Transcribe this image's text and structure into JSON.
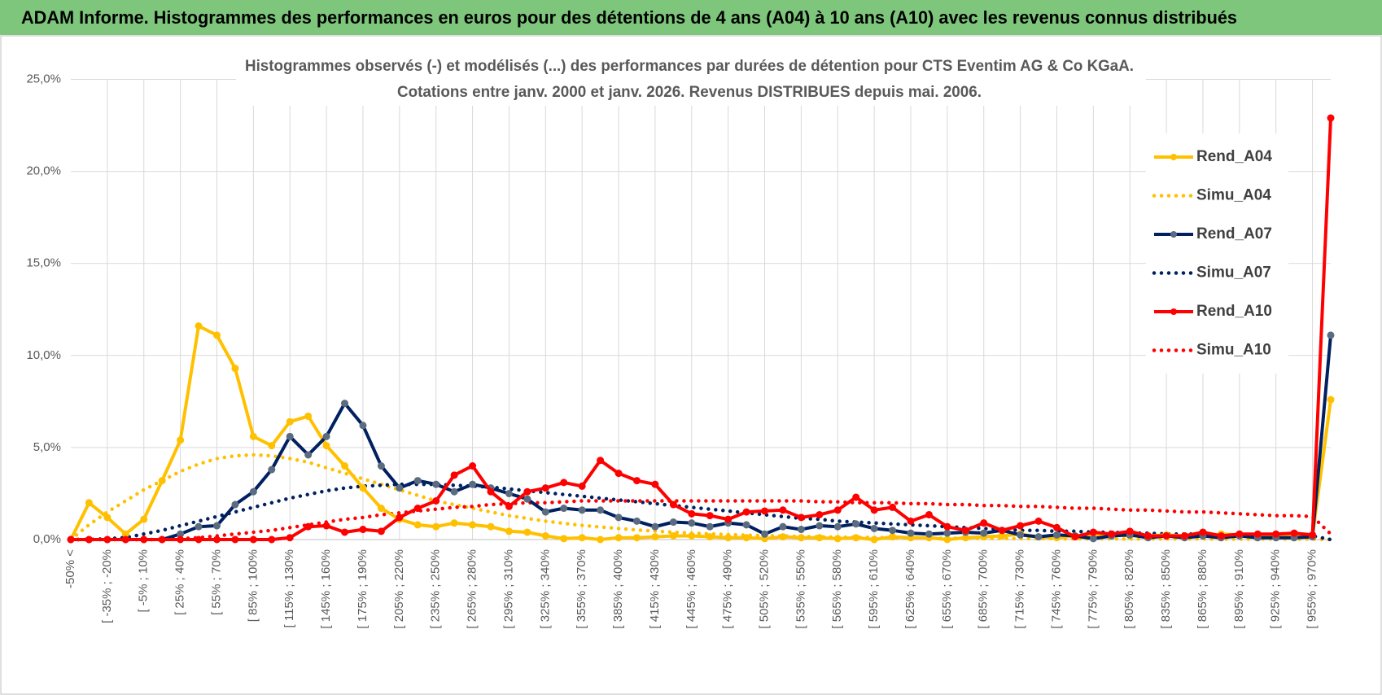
{
  "header": {
    "title": "ADAM Informe. Histogrammes des performances en euros pour des détentions de 4 ans (A04) à 10 ans (A10) avec les revenus connus distribués"
  },
  "chart_data": {
    "type": "line",
    "title": "Histogrammes observés (-) et modélisés (...) des performances par durées de détention pour CTS Eventim AG & Co KGaA.",
    "subtitle": "Cotations entre janv. 2000 et janv. 2026. Revenus DISTRIBUES depuis mai. 2006.",
    "categories": [
      "-50% <",
      null,
      "[ -35% ; -20%",
      null,
      "[ -5% ; 10%",
      null,
      "[ 25% ; 40%",
      null,
      "[ 55% ; 70%",
      null,
      "[ 85% ; 100%",
      null,
      "[ 115% ; 130%",
      null,
      "[ 145% ; 160%",
      null,
      "[ 175% ; 190%",
      null,
      "[ 205% ; 220%",
      null,
      "[ 235% ; 250%",
      null,
      "[ 265% ; 280%",
      null,
      "[ 295% ; 310%",
      null,
      "[ 325% ; 340%",
      null,
      "[ 355% ; 370%",
      null,
      "[ 385% ; 400%",
      null,
      "[ 415% ; 430%",
      null,
      "[ 445% ; 460%",
      null,
      "[ 475% ; 490%",
      null,
      "[ 505% ; 520%",
      null,
      "[ 535% ; 550%",
      null,
      "[ 565% ; 580%",
      null,
      "[ 595% ; 610%",
      null,
      "[ 625% ; 640%",
      null,
      "[ 655% ; 670%",
      null,
      "[ 685% ; 700%",
      null,
      "[ 715% ; 730%",
      null,
      "[ 745% ; 760%",
      null,
      "[ 775% ; 790%",
      null,
      "[ 805% ; 820%",
      null,
      "[ 835% ; 850%",
      null,
      "[ 865% ; 880%",
      null,
      "[ 895% ; 910%",
      null,
      "[ 925% ; 940%",
      null,
      "[ 955% ; 970%",
      null
    ],
    "series": [
      {
        "name": "Rend_A04",
        "color": "#ffc000",
        "style": "solid",
        "markers": true,
        "marker_color": "#ffc000",
        "values": [
          0,
          2.0,
          1.2,
          0.3,
          1.1,
          3.2,
          5.4,
          11.6,
          11.1,
          9.3,
          5.6,
          5.1,
          6.4,
          6.7,
          5.1,
          4.0,
          2.8,
          1.7,
          1.1,
          0.8,
          0.7,
          0.9,
          0.8,
          0.7,
          0.45,
          0.4,
          0.2,
          0.05,
          0.1,
          0.0,
          0.1,
          0.1,
          0.15,
          0.2,
          0.2,
          0.15,
          0.1,
          0.1,
          0.05,
          0.15,
          0.1,
          0.1,
          0.05,
          0.1,
          0.0,
          0.15,
          0.1,
          0.1,
          0.0,
          0.1,
          0.15,
          0.2,
          0.3,
          0.15,
          0.1,
          0.2,
          0.25,
          0.3,
          0.2,
          0.2,
          0.25,
          0.2,
          0.2,
          0.3,
          0.25,
          0.2,
          0.25,
          0.2,
          0.2,
          7.6
        ]
      },
      {
        "name": "Simu_A04",
        "color": "#ffc000",
        "style": "dotted",
        "markers": false,
        "values": [
          0,
          0.8,
          1.5,
          2.1,
          2.7,
          3.2,
          3.7,
          4.1,
          4.4,
          4.55,
          4.6,
          4.55,
          4.4,
          4.2,
          3.9,
          3.6,
          3.3,
          3.0,
          2.7,
          2.4,
          2.1,
          1.9,
          1.7,
          1.5,
          1.3,
          1.15,
          1.0,
          0.88,
          0.77,
          0.68,
          0.6,
          0.52,
          0.46,
          0.4,
          0.35,
          0.31,
          0.27,
          0.24,
          0.21,
          0.19,
          0.17,
          0.15,
          0.13,
          0.12,
          0.11,
          0.1,
          0.09,
          0.08,
          0.07,
          0.07,
          0.06,
          0.06,
          0.05,
          0.05,
          0.05,
          0.04,
          0.04,
          0.04,
          0.03,
          0.03,
          0.03,
          0.03,
          0.03,
          0.02,
          0.02,
          0.02,
          0.02,
          0.02,
          0.02,
          0
        ]
      },
      {
        "name": "Rend_A07",
        "color": "#002060",
        "style": "solid",
        "markers": true,
        "marker_color": "#5b6b80",
        "values": [
          0,
          0,
          0,
          0,
          0,
          0,
          0.3,
          0.7,
          0.75,
          1.9,
          2.6,
          3.8,
          5.6,
          4.6,
          5.6,
          7.4,
          6.2,
          4.0,
          2.8,
          3.2,
          3.0,
          2.6,
          3.0,
          2.8,
          2.5,
          2.2,
          1.5,
          1.7,
          1.6,
          1.6,
          1.2,
          1.0,
          0.7,
          0.95,
          0.9,
          0.7,
          0.9,
          0.8,
          0.3,
          0.7,
          0.55,
          0.75,
          0.7,
          0.85,
          0.6,
          0.5,
          0.35,
          0.3,
          0.35,
          0.4,
          0.35,
          0.5,
          0.25,
          0.15,
          0.25,
          0.2,
          0.05,
          0.2,
          0.25,
          0.1,
          0.2,
          0.1,
          0.2,
          0.1,
          0.2,
          0.1,
          0.1,
          0.1,
          0.15,
          11.1
        ]
      },
      {
        "name": "Simu_A07",
        "color": "#002060",
        "style": "dotted",
        "markers": false,
        "values": [
          0,
          0,
          0.05,
          0.1,
          0.3,
          0.5,
          0.75,
          1.0,
          1.25,
          1.5,
          1.75,
          2.0,
          2.25,
          2.45,
          2.65,
          2.8,
          2.9,
          2.95,
          3.0,
          3.0,
          3.0,
          2.95,
          2.9,
          2.85,
          2.75,
          2.65,
          2.55,
          2.45,
          2.35,
          2.25,
          2.15,
          2.05,
          1.95,
          1.85,
          1.75,
          1.65,
          1.55,
          1.45,
          1.35,
          1.25,
          1.15,
          1.1,
          1.0,
          0.95,
          0.9,
          0.85,
          0.8,
          0.75,
          0.7,
          0.65,
          0.6,
          0.55,
          0.5,
          0.5,
          0.45,
          0.45,
          0.4,
          0.4,
          0.35,
          0.35,
          0.3,
          0.3,
          0.3,
          0.25,
          0.25,
          0.25,
          0.2,
          0.2,
          0.2,
          0
        ]
      },
      {
        "name": "Rend_A10",
        "color": "#ff0000",
        "style": "solid",
        "markers": true,
        "marker_color": "#ff0000",
        "values": [
          0,
          0,
          0,
          0,
          0,
          0,
          0,
          0,
          0,
          0,
          0,
          0,
          0.1,
          0.7,
          0.75,
          0.4,
          0.55,
          0.45,
          1.2,
          1.7,
          2.1,
          3.5,
          4.0,
          2.6,
          1.8,
          2.6,
          2.8,
          3.1,
          2.9,
          4.3,
          3.6,
          3.2,
          3.0,
          1.9,
          1.4,
          1.3,
          1.1,
          1.5,
          1.55,
          1.6,
          1.2,
          1.35,
          1.6,
          2.3,
          1.6,
          1.75,
          1.0,
          1.35,
          0.7,
          0.5,
          0.9,
          0.5,
          0.75,
          1.0,
          0.65,
          0.15,
          0.4,
          0.3,
          0.45,
          0.2,
          0.2,
          0.2,
          0.4,
          0.2,
          0.3,
          0.3,
          0.3,
          0.35,
          0.25,
          22.9
        ]
      },
      {
        "name": "Simu_A10",
        "color": "#ff0000",
        "style": "dotted",
        "markers": false,
        "values": [
          0,
          0,
          0,
          0,
          0,
          0,
          0.05,
          0.1,
          0.2,
          0.3,
          0.4,
          0.5,
          0.65,
          0.8,
          0.95,
          1.1,
          1.2,
          1.35,
          1.45,
          1.55,
          1.65,
          1.75,
          1.8,
          1.9,
          1.95,
          2.0,
          2.0,
          2.05,
          2.1,
          2.1,
          2.1,
          2.1,
          2.1,
          2.1,
          2.1,
          2.1,
          2.1,
          2.1,
          2.1,
          2.1,
          2.1,
          2.05,
          2.05,
          2.0,
          2.0,
          2.0,
          1.95,
          1.95,
          1.9,
          1.9,
          1.85,
          1.85,
          1.8,
          1.8,
          1.75,
          1.7,
          1.7,
          1.65,
          1.6,
          1.6,
          1.55,
          1.5,
          1.5,
          1.45,
          1.4,
          1.35,
          1.3,
          1.3,
          1.25,
          0.3
        ]
      }
    ],
    "ylim": [
      0,
      25
    ],
    "yticks": [
      {
        "value": 0,
        "label": "0,0%"
      },
      {
        "value": 5,
        "label": "5,0%"
      },
      {
        "value": 10,
        "label": "10,0%"
      },
      {
        "value": 15,
        "label": "15,0%"
      },
      {
        "value": 20,
        "label": "20,0%"
      },
      {
        "value": 25,
        "label": "25,0%"
      }
    ],
    "grid": true,
    "legend": "right"
  }
}
